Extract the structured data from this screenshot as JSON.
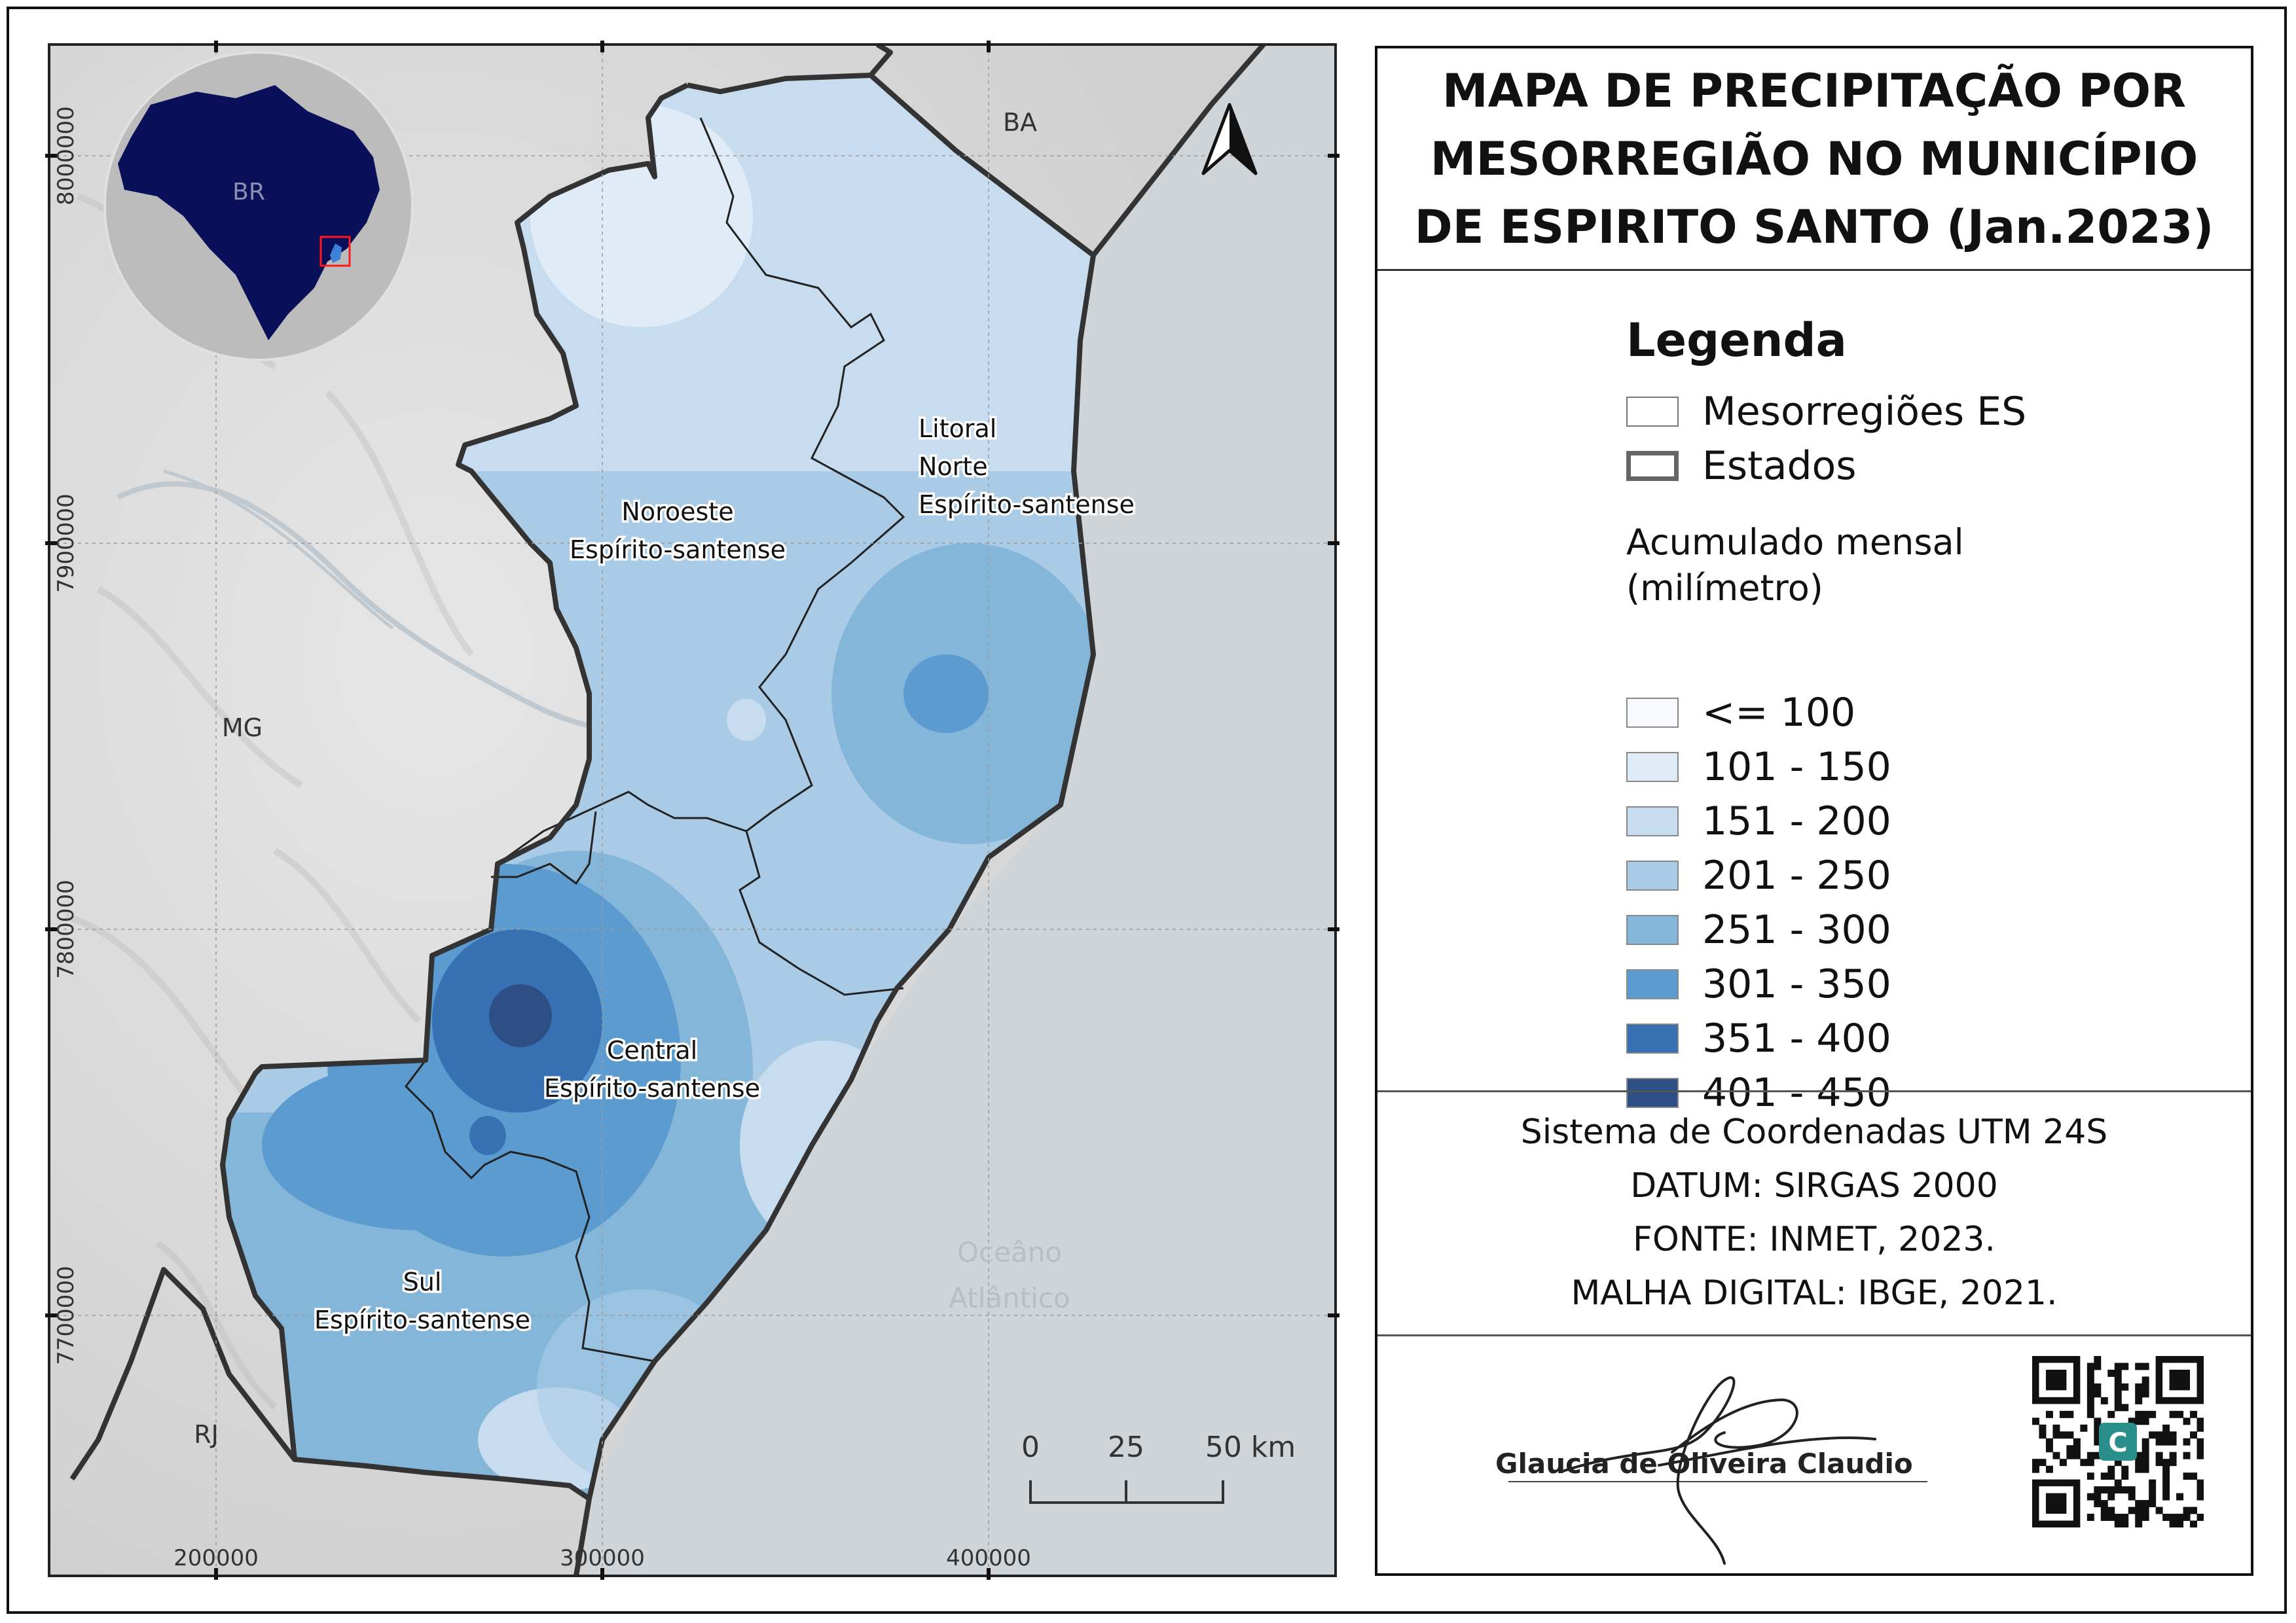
{
  "title": "MAPA DE PRECIPITAÇÃO POR MESORREGIÃO NO MUNICÍPIO DE ESPIRITO SANTO (Jan.2023)",
  "map": {
    "inset_label": "BR",
    "state_labels": {
      "bahia": "BA",
      "minas": "MG",
      "rio": "RJ"
    },
    "ocean_label": {
      "line1": "Oceâno",
      "line2": "Atlântico"
    },
    "regions": {
      "noroeste": {
        "line1": "Noroeste",
        "line2": "Espírito-santense"
      },
      "litoral": {
        "line1": "Litoral",
        "line2": "Norte",
        "line3": "Espírito-santense"
      },
      "central": {
        "line1": "Central",
        "line2": "Espírito-santense"
      },
      "sul": {
        "line1": "Sul",
        "line2": "Espírito-santense"
      }
    },
    "easting_ticks": [
      "200000",
      "300000",
      "400000"
    ],
    "northing_ticks": [
      "8000000",
      "7900000",
      "7800000",
      "7700000"
    ],
    "scale_labels": [
      "0",
      "25",
      "50 km"
    ]
  },
  "legend": {
    "title": "Legenda",
    "layers": [
      {
        "label": "Mesorregiões ES"
      },
      {
        "label": "Estados"
      }
    ],
    "ramp_title_line1": "Acumulado mensal",
    "ramp_title_line2": "(milímetro)",
    "classes": [
      {
        "label": "<= 100",
        "color": "#f7fbff"
      },
      {
        "label": "101 - 150",
        "color": "#dfebf6"
      },
      {
        "label": "151 - 200",
        "color": "#c8dcef"
      },
      {
        "label": "201 - 250",
        "color": "#a9cbe6"
      },
      {
        "label": "251 - 300",
        "color": "#84b6da"
      },
      {
        "label": "301 - 350",
        "color": "#5b9bcf"
      },
      {
        "label": "351 - 400",
        "color": "#3870b4"
      },
      {
        "label": "401 - 450",
        "color": "#2d4f86"
      }
    ]
  },
  "info": {
    "crs": "Sistema de Coordenadas UTM 24S",
    "datum": "DATUM: SIRGAS 2000",
    "source": "FONTE: INMET, 2023.",
    "mesh": "MALHA DIGITAL: IBGE, 2021."
  },
  "signature": {
    "name": "Glaucia de Oliveira Claudio"
  }
}
